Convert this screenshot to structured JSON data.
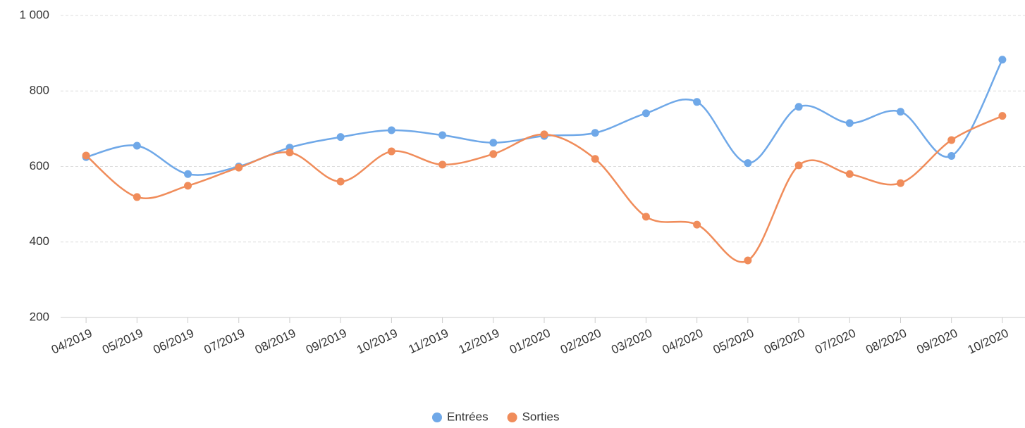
{
  "chart_data": {
    "type": "line",
    "categories": [
      "04/2019",
      "05/2019",
      "06/2019",
      "07/2019",
      "08/2019",
      "09/2019",
      "10/2019",
      "11/2019",
      "12/2019",
      "01/2020",
      "02/2020",
      "03/2020",
      "04/2020",
      "05/2020",
      "06/2020",
      "07/2020",
      "08/2020",
      "09/2020",
      "10/2020"
    ],
    "series": [
      {
        "name": "Entrées",
        "color": "#6fa8e8",
        "values": [
          625,
          655,
          580,
          600,
          650,
          678,
          696,
          683,
          663,
          681,
          689,
          741,
          771,
          609,
          758,
          715,
          745,
          628,
          883
        ]
      },
      {
        "name": "Sorties",
        "color": "#f08c5a",
        "values": [
          629,
          519,
          549,
          597,
          637,
          560,
          640,
          605,
          633,
          685,
          620,
          467,
          446,
          351,
          603,
          580,
          556,
          670,
          734
        ]
      }
    ],
    "ylim": [
      200,
      1000
    ],
    "yticks": [
      200,
      400,
      600,
      800,
      {
        "value": 1000,
        "label": "1 000"
      }
    ],
    "grid": true,
    "smooth": true,
    "legend": "bottom"
  }
}
